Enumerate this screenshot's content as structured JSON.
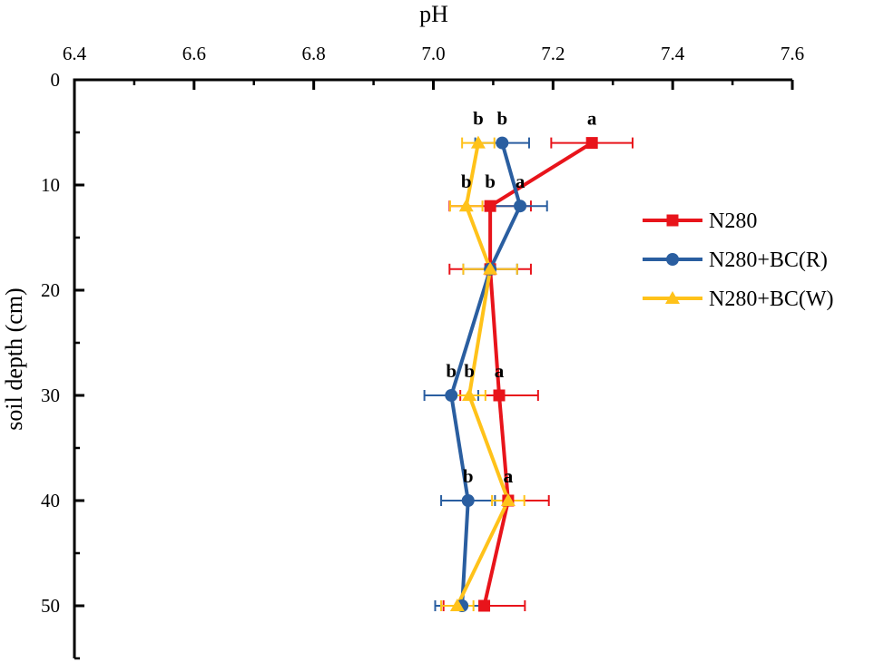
{
  "chart_data": {
    "type": "line",
    "orientation": "vertical-profile",
    "xlabel": "pH",
    "ylabel": "soil depth (cm)",
    "xlim": [
      6.4,
      7.6
    ],
    "ylim": [
      0,
      55
    ],
    "x_ticks": [
      "6.4",
      "6.6",
      "6.8",
      "7.0",
      "7.2",
      "7.4",
      "7.6"
    ],
    "y_ticks": [
      "0",
      "10",
      "20",
      "30",
      "40",
      "50"
    ],
    "x_axis_position": "top",
    "legend_position": "right",
    "depths": [
      6,
      12,
      18,
      30,
      40,
      50
    ],
    "series": [
      {
        "name": "N280",
        "color": "#e8141b",
        "marker": "square",
        "values": [
          7.265,
          7.095,
          7.095,
          7.11,
          7.125,
          7.085
        ],
        "errors": [
          0.068,
          0.068,
          0.068,
          0.065,
          0.068,
          0.068
        ],
        "labels": [
          "a",
          "b",
          "",
          "a",
          "a",
          ""
        ]
      },
      {
        "name": "N280+BC(R)",
        "color": "#2a5ea0",
        "marker": "circle",
        "values": [
          7.115,
          7.145,
          7.095,
          7.03,
          7.058,
          7.048
        ],
        "errors": [
          0.045,
          0.045,
          0.045,
          0.045,
          0.045,
          0.045
        ],
        "labels": [
          "b",
          "a",
          "",
          "b",
          "b",
          ""
        ]
      },
      {
        "name": "N280+BC(W)",
        "color": "#ffc21a",
        "marker": "triangle",
        "values": [
          7.075,
          7.055,
          7.095,
          7.06,
          7.125,
          7.04
        ],
        "errors": [
          0.027,
          0.027,
          0.045,
          0.027,
          0.027,
          0.027
        ],
        "labels": [
          "b",
          "b",
          "",
          "b",
          "a",
          ""
        ]
      }
    ]
  }
}
